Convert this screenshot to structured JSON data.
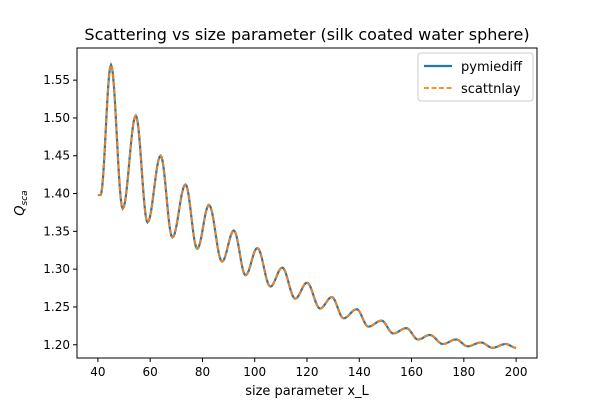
{
  "chart_data": {
    "type": "line",
    "title": "Scattering vs size parameter (silk coated water sphere)",
    "xlabel": "size parameter x_L",
    "ylabel_main": "Q",
    "ylabel_sub": "sca",
    "xlim": [
      32,
      208
    ],
    "ylim": [
      1.1825,
      1.5925
    ],
    "xticks": [
      40,
      60,
      80,
      100,
      120,
      140,
      160,
      180,
      200
    ],
    "yticks": [
      "1.20",
      "1.25",
      "1.30",
      "1.35",
      "1.40",
      "1.45",
      "1.50",
      "1.55"
    ],
    "grid": false,
    "legend_placement": "top-right",
    "x": [
      40,
      41,
      45,
      49.5,
      54.5,
      59,
      64,
      68.5,
      73.5,
      78,
      82.5,
      87.5,
      92,
      96.5,
      101,
      106,
      110.5,
      115.5,
      120,
      125,
      129.5,
      134,
      139,
      143.5,
      148.5,
      153,
      158,
      162.5,
      167,
      172,
      177,
      181.5,
      186.5,
      191,
      196,
      200
    ],
    "y": [
      1.398,
      1.398,
      1.57,
      1.38,
      1.503,
      1.362,
      1.45,
      1.342,
      1.412,
      1.327,
      1.385,
      1.31,
      1.351,
      1.292,
      1.328,
      1.277,
      1.302,
      1.261,
      1.282,
      1.248,
      1.263,
      1.235,
      1.247,
      1.224,
      1.232,
      1.215,
      1.222,
      1.207,
      1.213,
      1.201,
      1.207,
      1.198,
      1.203,
      1.196,
      1.201,
      1.196
    ],
    "series": [
      {
        "name": "pymiediff",
        "color": "#1f77b4",
        "style": "solid"
      },
      {
        "name": "scattnlay",
        "color": "#ff7f0e",
        "style": "dashed"
      }
    ]
  }
}
